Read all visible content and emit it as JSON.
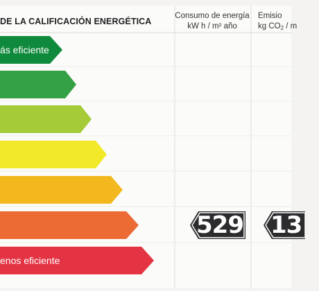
{
  "header": {
    "title": "DE LA CALIFICACIÓN ENERGÉTICA",
    "consumo_line1": "Consumo de energía",
    "consumo_line2": "kW h / m² año",
    "emision_line1": "Emisio",
    "emision_line2_pre": "kg CO",
    "emision_line2_sub": "2",
    "emision_line2_post": " / m"
  },
  "scale": [
    {
      "label": "ás eficiente",
      "color": "#0f8a3c"
    },
    {
      "label": "",
      "color": "#34a145"
    },
    {
      "label": "",
      "color": "#a5cb39"
    },
    {
      "label": "",
      "color": "#f2ea28"
    },
    {
      "label": "",
      "color": "#f2b81e"
    },
    {
      "label": "",
      "color": "#ec6b35"
    },
    {
      "label": "enos eficiente",
      "color": "#e43444"
    }
  ],
  "consumo_value": "529",
  "emision_value": "13"
}
